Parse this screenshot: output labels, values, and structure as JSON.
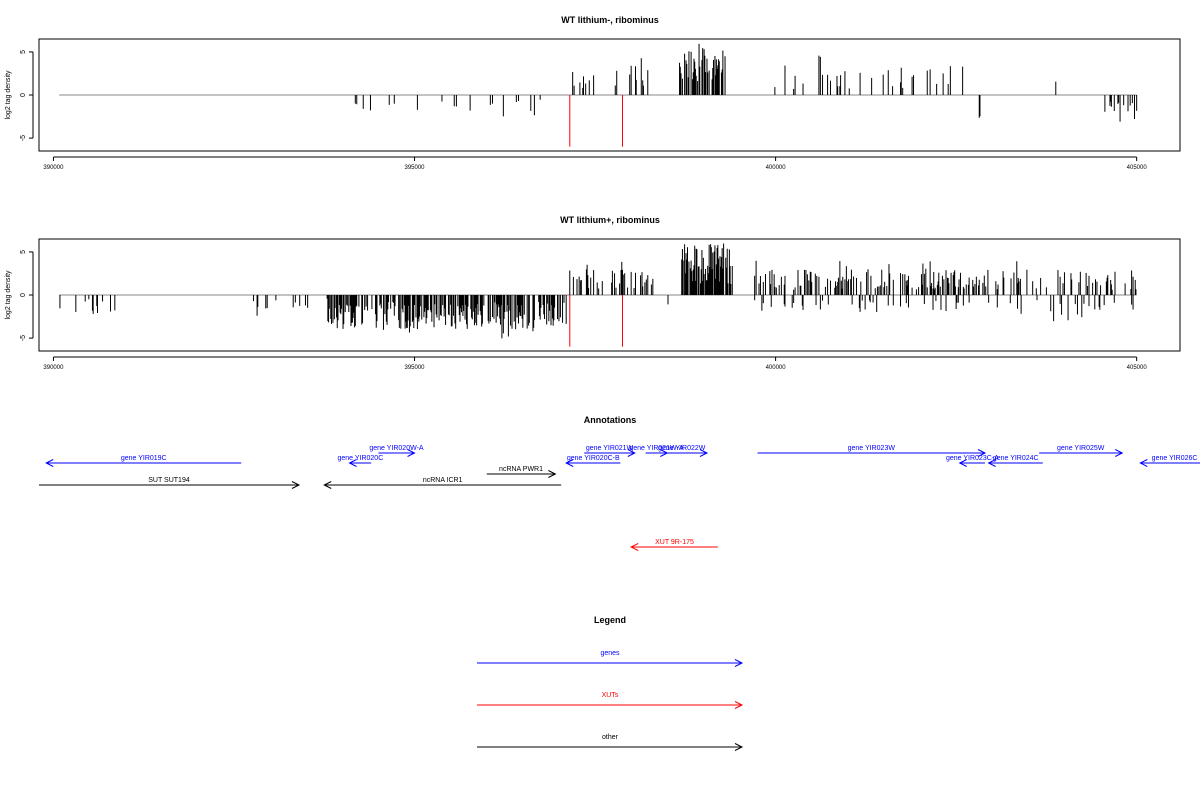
{
  "chart_data": [
    {
      "type": "bar",
      "title": "WT lithium-, ribominus",
      "ylabel": "log2 tag density",
      "xlim": [
        389800,
        405600
      ],
      "ylim": [
        -6.5,
        6.5
      ],
      "xticks": [
        390000,
        395000,
        400000,
        405000
      ],
      "yticks": [
        5,
        0,
        -5
      ],
      "baseline_range": [
        390080,
        405000
      ],
      "bar_color": "#000000",
      "highlight_color": "#ff0000",
      "highlights": [
        {
          "x": 397150,
          "y": -6.0
        },
        {
          "x": 397880,
          "y": -6.0
        }
      ],
      "segments": [
        {
          "x0": 393300,
          "x1": 393400,
          "kind": "neg",
          "amp": 2.3,
          "density": 0.06
        },
        {
          "x0": 393700,
          "x1": 396900,
          "kind": "neg",
          "amp": 2.5,
          "density": 0.07
        },
        {
          "x0": 397150,
          "x1": 398250,
          "kind": "pos",
          "amp": 3.5,
          "density": 0.1
        },
        {
          "x0": 398650,
          "x1": 399300,
          "kind": "pos",
          "amp": 5.5,
          "density": 0.7
        },
        {
          "x0": 399950,
          "x1": 402650,
          "kind": "pos",
          "amp": 3.5,
          "density": 0.09
        },
        {
          "x0": 402650,
          "x1": 402850,
          "kind": "neg",
          "amp": 2.8,
          "density": 0.1
        },
        {
          "x0": 403650,
          "x1": 404550,
          "kind": "pos",
          "amp": 1.8,
          "density": 0.02
        },
        {
          "x0": 404550,
          "x1": 405000,
          "kind": "neg",
          "amp": 3.0,
          "density": 0.25
        }
      ]
    },
    {
      "type": "bar",
      "title": "WT lithium+, ribominus",
      "ylabel": "log2 tag density",
      "xlim": [
        389800,
        405600
      ],
      "ylim": [
        -6.5,
        6.5
      ],
      "xticks": [
        390000,
        395000,
        400000,
        405000
      ],
      "yticks": [
        5,
        0,
        -5
      ],
      "baseline_range": [
        390080,
        405000
      ],
      "bar_color": "#000000",
      "highlight_color": "#ff0000",
      "highlights": [
        {
          "x": 397150,
          "y": -6.0
        },
        {
          "x": 397880,
          "y": -6.0
        }
      ],
      "segments": [
        {
          "x0": 390080,
          "x1": 391300,
          "kind": "neg",
          "amp": 2.2,
          "density": 0.05
        },
        {
          "x0": 392700,
          "x1": 393800,
          "kind": "neg",
          "amp": 2.0,
          "density": 0.12
        },
        {
          "x0": 393800,
          "x1": 397100,
          "kind": "neg",
          "amp": 4.0,
          "density": 0.6
        },
        {
          "x0": 394600,
          "x1": 394700,
          "kind": "pos",
          "amp": 1.6,
          "density": 0.05
        },
        {
          "x0": 397150,
          "x1": 398300,
          "kind": "pos",
          "amp": 3.0,
          "density": 0.3
        },
        {
          "x0": 398300,
          "x1": 398700,
          "kind": "neg",
          "amp": 1.2,
          "density": 0.05
        },
        {
          "x0": 398700,
          "x1": 399400,
          "kind": "pos",
          "amp": 6.0,
          "density": 0.9
        },
        {
          "x0": 399700,
          "x1": 403100,
          "kind": "pos",
          "amp": 3.0,
          "density": 0.35
        },
        {
          "x0": 399700,
          "x1": 403100,
          "kind": "neg",
          "amp": 2.0,
          "density": 0.12
        },
        {
          "x0": 403100,
          "x1": 405000,
          "kind": "pos",
          "amp": 3.0,
          "density": 0.18
        },
        {
          "x0": 403100,
          "x1": 405000,
          "kind": "neg",
          "amp": 3.0,
          "density": 0.1
        }
      ]
    }
  ],
  "annotations": {
    "title": "Annotations",
    "features": [
      {
        "label": "gene YIR019C",
        "x0": 392600,
        "x1": 389900,
        "row": 1,
        "color": "#0000ff"
      },
      {
        "label": "SUT SUT194",
        "x0": 389800,
        "x1": 393400,
        "row": 3,
        "color": "#000000"
      },
      {
        "label": "gene YIR020W-A",
        "x0": 394500,
        "x1": 395000,
        "row": 0,
        "color": "#0000ff"
      },
      {
        "label": "gene YIR020C",
        "x0": 394400,
        "x1": 394100,
        "row": 1,
        "color": "#0000ff"
      },
      {
        "label": "ncRNA PWR1",
        "x0": 396000,
        "x1": 396950,
        "row": 2,
        "color": "#000000"
      },
      {
        "label": "ncRNA ICR1",
        "x0": 397030,
        "x1": 393750,
        "row": 3,
        "color": "#000000"
      },
      {
        "label": "gene YIR021W",
        "x0": 397350,
        "x1": 398050,
        "row": 0,
        "color": "#0000ff"
      },
      {
        "label": "gene YIR020C-B",
        "x0": 397850,
        "x1": 397100,
        "row": 1,
        "color": "#0000ff"
      },
      {
        "label": "gene YIR021W-A",
        "x0": 398200,
        "x1": 398500,
        "row": 0,
        "color": "#0000ff"
      },
      {
        "label": "gene YIR022W",
        "x0": 398350,
        "x1": 399050,
        "row": 0,
        "color": "#0000ff"
      },
      {
        "label": "gene YIR023W",
        "x0": 399750,
        "x1": 402900,
        "row": 0,
        "color": "#0000ff"
      },
      {
        "label": "gene YIR023C-A",
        "x0": 402900,
        "x1": 402550,
        "row": 1,
        "color": "#0000ff"
      },
      {
        "label": "gene YIR024C",
        "x0": 403700,
        "x1": 402950,
        "row": 1,
        "color": "#0000ff"
      },
      {
        "label": "gene YIR025W",
        "x0": 403650,
        "x1": 404800,
        "row": 0,
        "color": "#0000ff"
      },
      {
        "label": "gene YIR026C",
        "x0": 406000,
        "x1": 405050,
        "row": 1,
        "color": "#0000ff"
      },
      {
        "label": "XUT 9R-175",
        "x0": 399200,
        "x1": 398000,
        "row": 5,
        "color": "#ff0000"
      }
    ]
  },
  "legend": {
    "title": "Legend",
    "items": [
      {
        "label": "genes",
        "color": "#0000ff"
      },
      {
        "label": "XUTs",
        "color": "#ff0000"
      },
      {
        "label": "other",
        "color": "#000000"
      }
    ]
  }
}
